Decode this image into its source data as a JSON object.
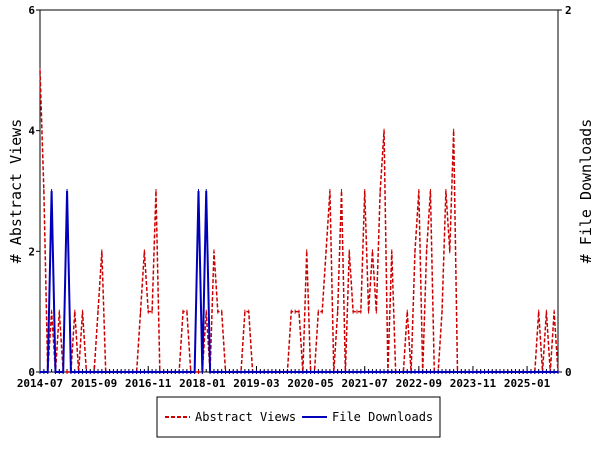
{
  "chart_data": {
    "type": "line",
    "x_axis": {
      "start": "2014-07",
      "end": "2025-09",
      "tick_labels": [
        "2014-07",
        "2015-09",
        "2016-11",
        "2018-01",
        "2019-03",
        "2020-05",
        "2021-07",
        "2022-09",
        "2023-11",
        "2025-01"
      ]
    },
    "y_left": {
      "label": "# Abstract Views",
      "ylim": [
        0,
        6
      ],
      "ticks": [
        "0",
        "2",
        "4",
        "6"
      ]
    },
    "y_right": {
      "label": "# File Downloads",
      "ylim": [
        0,
        2
      ],
      "ticks": [
        "0",
        "2"
      ]
    },
    "grid": false,
    "legend_position": "bottom-center",
    "series": [
      {
        "name": "Abstract Views",
        "color": "#cc0000",
        "axis": "left",
        "style": "dashed",
        "points": [
          [
            "2014-07",
            5
          ],
          [
            "2014-08",
            3
          ],
          [
            "2014-09",
            0
          ],
          [
            "2014-10",
            1
          ],
          [
            "2014-11",
            0
          ],
          [
            "2014-12",
            1
          ],
          [
            "2015-01",
            0
          ],
          [
            "2015-02",
            0
          ],
          [
            "2015-03",
            0
          ],
          [
            "2015-04",
            1
          ],
          [
            "2015-05",
            0
          ],
          [
            "2015-06",
            1
          ],
          [
            "2015-07",
            0
          ],
          [
            "2015-08",
            0
          ],
          [
            "2015-09",
            0
          ],
          [
            "2015-10",
            1
          ],
          [
            "2015-11",
            2
          ],
          [
            "2015-12",
            0
          ],
          [
            "2016-01",
            0
          ],
          [
            "2016-02",
            0
          ],
          [
            "2016-03",
            0
          ],
          [
            "2016-04",
            0
          ],
          [
            "2016-05",
            0
          ],
          [
            "2016-06",
            0
          ],
          [
            "2016-07",
            0
          ],
          [
            "2016-08",
            0
          ],
          [
            "2016-09",
            1
          ],
          [
            "2016-10",
            2
          ],
          [
            "2016-11",
            1
          ],
          [
            "2016-12",
            1
          ],
          [
            "2017-01",
            3
          ],
          [
            "2017-02",
            0
          ],
          [
            "2017-03",
            0
          ],
          [
            "2017-04",
            0
          ],
          [
            "2017-05",
            0
          ],
          [
            "2017-06",
            0
          ],
          [
            "2017-07",
            0
          ],
          [
            "2017-08",
            1
          ],
          [
            "2017-09",
            1
          ],
          [
            "2017-10",
            0
          ],
          [
            "2017-11",
            0
          ],
          [
            "2017-12",
            0
          ],
          [
            "2018-01",
            0
          ],
          [
            "2018-02",
            1
          ],
          [
            "2018-03",
            0
          ],
          [
            "2018-04",
            2
          ],
          [
            "2018-05",
            1
          ],
          [
            "2018-06",
            1
          ],
          [
            "2018-07",
            0
          ],
          [
            "2018-08",
            0
          ],
          [
            "2018-09",
            0
          ],
          [
            "2018-10",
            0
          ],
          [
            "2018-11",
            0
          ],
          [
            "2018-12",
            1
          ],
          [
            "2019-01",
            1
          ],
          [
            "2019-02",
            0
          ],
          [
            "2019-03",
            0
          ],
          [
            "2019-04",
            0
          ],
          [
            "2019-05",
            0
          ],
          [
            "2019-06",
            0
          ],
          [
            "2019-07",
            0
          ],
          [
            "2019-08",
            0
          ],
          [
            "2019-09",
            0
          ],
          [
            "2019-10",
            0
          ],
          [
            "2019-11",
            0
          ],
          [
            "2019-12",
            1
          ],
          [
            "2020-01",
            1
          ],
          [
            "2020-02",
            1
          ],
          [
            "2020-03",
            0
          ],
          [
            "2020-04",
            2
          ],
          [
            "2020-05",
            0
          ],
          [
            "2020-06",
            0
          ],
          [
            "2020-07",
            1
          ],
          [
            "2020-08",
            1
          ],
          [
            "2020-09",
            2
          ],
          [
            "2020-10",
            3
          ],
          [
            "2020-11",
            0
          ],
          [
            "2020-12",
            1
          ],
          [
            "2021-01",
            3
          ],
          [
            "2021-02",
            0
          ],
          [
            "2021-03",
            2
          ],
          [
            "2021-04",
            1
          ],
          [
            "2021-05",
            1
          ],
          [
            "2021-06",
            1
          ],
          [
            "2021-07",
            3
          ],
          [
            "2021-08",
            1
          ],
          [
            "2021-09",
            2
          ],
          [
            "2021-10",
            1
          ],
          [
            "2021-11",
            3
          ],
          [
            "2021-12",
            4
          ],
          [
            "2022-01",
            0
          ],
          [
            "2022-02",
            2
          ],
          [
            "2022-03",
            0
          ],
          [
            "2022-04",
            0
          ],
          [
            "2022-05",
            0
          ],
          [
            "2022-06",
            1
          ],
          [
            "2022-07",
            0
          ],
          [
            "2022-08",
            2
          ],
          [
            "2022-09",
            3
          ],
          [
            "2022-10",
            0
          ],
          [
            "2022-11",
            2
          ],
          [
            "2022-12",
            3
          ],
          [
            "2023-01",
            0
          ],
          [
            "2023-02",
            0
          ],
          [
            "2023-03",
            1
          ],
          [
            "2023-04",
            3
          ],
          [
            "2023-05",
            2
          ],
          [
            "2023-06",
            4
          ],
          [
            "2023-07",
            0
          ],
          [
            "2023-08",
            0
          ],
          [
            "2023-09",
            0
          ],
          [
            "2023-10",
            0
          ],
          [
            "2023-11",
            0
          ],
          [
            "2023-12",
            0
          ],
          [
            "2024-01",
            0
          ],
          [
            "2024-02",
            0
          ],
          [
            "2024-03",
            0
          ],
          [
            "2024-04",
            0
          ],
          [
            "2024-05",
            0
          ],
          [
            "2024-06",
            0
          ],
          [
            "2024-07",
            0
          ],
          [
            "2024-08",
            0
          ],
          [
            "2024-09",
            0
          ],
          [
            "2024-10",
            0
          ],
          [
            "2024-11",
            0
          ],
          [
            "2024-12",
            0
          ],
          [
            "2025-01",
            0
          ],
          [
            "2025-02",
            0
          ],
          [
            "2025-03",
            0
          ],
          [
            "2025-04",
            1
          ],
          [
            "2025-05",
            0
          ],
          [
            "2025-06",
            1
          ],
          [
            "2025-07",
            0
          ],
          [
            "2025-08",
            1
          ],
          [
            "2025-09",
            0
          ]
        ]
      },
      {
        "name": "File Downloads",
        "color": "#0000bb",
        "axis": "right",
        "style": "solid",
        "points": [
          [
            "2014-07",
            0
          ],
          [
            "2014-08",
            0
          ],
          [
            "2014-09",
            0
          ],
          [
            "2014-10",
            1
          ],
          [
            "2014-11",
            0
          ],
          [
            "2014-12",
            0
          ],
          [
            "2015-01",
            0
          ],
          [
            "2015-02",
            1
          ],
          [
            "2015-03",
            0
          ],
          [
            "2015-04",
            0
          ],
          [
            "2015-05",
            0
          ],
          [
            "2015-06",
            0
          ],
          [
            "2015-07",
            0
          ],
          [
            "2015-08",
            0
          ],
          [
            "2015-09",
            0
          ],
          [
            "2015-10",
            0
          ],
          [
            "2015-11",
            0
          ],
          [
            "2015-12",
            0
          ],
          [
            "2016-01",
            0
          ],
          [
            "2016-02",
            0
          ],
          [
            "2016-03",
            0
          ],
          [
            "2016-04",
            0
          ],
          [
            "2016-05",
            0
          ],
          [
            "2016-06",
            0
          ],
          [
            "2016-07",
            0
          ],
          [
            "2016-08",
            0
          ],
          [
            "2016-09",
            0
          ],
          [
            "2016-10",
            0
          ],
          [
            "2016-11",
            0
          ],
          [
            "2016-12",
            0
          ],
          [
            "2017-01",
            0
          ],
          [
            "2017-02",
            0
          ],
          [
            "2017-03",
            0
          ],
          [
            "2017-04",
            0
          ],
          [
            "2017-05",
            0
          ],
          [
            "2017-06",
            0
          ],
          [
            "2017-07",
            0
          ],
          [
            "2017-08",
            0
          ],
          [
            "2017-09",
            0
          ],
          [
            "2017-10",
            0
          ],
          [
            "2017-11",
            0
          ],
          [
            "2017-12",
            1
          ],
          [
            "2018-01",
            0
          ],
          [
            "2018-02",
            1
          ],
          [
            "2018-03",
            0
          ],
          [
            "2018-04",
            0
          ],
          [
            "2018-05",
            0
          ],
          [
            "2018-06",
            0
          ],
          [
            "2018-07",
            0
          ],
          [
            "2018-08",
            0
          ],
          [
            "2018-09",
            0
          ],
          [
            "2018-10",
            0
          ],
          [
            "2018-11",
            0
          ],
          [
            "2018-12",
            0
          ],
          [
            "2019-01",
            0
          ],
          [
            "2019-02",
            0
          ],
          [
            "2019-03",
            0
          ],
          [
            "2019-04",
            0
          ],
          [
            "2019-05",
            0
          ],
          [
            "2019-06",
            0
          ],
          [
            "2019-07",
            0
          ],
          [
            "2019-08",
            0
          ],
          [
            "2019-09",
            0
          ],
          [
            "2019-10",
            0
          ],
          [
            "2019-11",
            0
          ],
          [
            "2019-12",
            0
          ],
          [
            "2020-01",
            0
          ],
          [
            "2020-02",
            0
          ],
          [
            "2020-03",
            0
          ],
          [
            "2020-04",
            0
          ],
          [
            "2020-05",
            0
          ],
          [
            "2020-06",
            0
          ],
          [
            "2020-07",
            0
          ],
          [
            "2020-08",
            0
          ],
          [
            "2020-09",
            0
          ],
          [
            "2020-10",
            0
          ],
          [
            "2020-11",
            0
          ],
          [
            "2020-12",
            0
          ],
          [
            "2021-01",
            0
          ],
          [
            "2021-02",
            0
          ],
          [
            "2021-03",
            0
          ],
          [
            "2021-04",
            0
          ],
          [
            "2021-05",
            0
          ],
          [
            "2021-06",
            0
          ],
          [
            "2021-07",
            0
          ],
          [
            "2021-08",
            0
          ],
          [
            "2021-09",
            0
          ],
          [
            "2021-10",
            0
          ],
          [
            "2021-11",
            0
          ],
          [
            "2021-12",
            0
          ],
          [
            "2022-01",
            0
          ],
          [
            "2022-02",
            0
          ],
          [
            "2022-03",
            0
          ],
          [
            "2022-04",
            0
          ],
          [
            "2022-05",
            0
          ],
          [
            "2022-06",
            0
          ],
          [
            "2022-07",
            0
          ],
          [
            "2022-08",
            0
          ],
          [
            "2022-09",
            0
          ],
          [
            "2022-10",
            0
          ],
          [
            "2022-11",
            0
          ],
          [
            "2022-12",
            0
          ],
          [
            "2023-01",
            0
          ],
          [
            "2023-02",
            0
          ],
          [
            "2023-03",
            0
          ],
          [
            "2023-04",
            0
          ],
          [
            "2023-05",
            0
          ],
          [
            "2023-06",
            0
          ],
          [
            "2023-07",
            0
          ],
          [
            "2023-08",
            0
          ],
          [
            "2023-09",
            0
          ],
          [
            "2023-10",
            0
          ],
          [
            "2023-11",
            0
          ],
          [
            "2023-12",
            0
          ],
          [
            "2024-01",
            0
          ],
          [
            "2024-02",
            0
          ],
          [
            "2024-03",
            0
          ],
          [
            "2024-04",
            0
          ],
          [
            "2024-05",
            0
          ],
          [
            "2024-06",
            0
          ],
          [
            "2024-07",
            0
          ],
          [
            "2024-08",
            0
          ],
          [
            "2024-09",
            0
          ],
          [
            "2024-10",
            0
          ],
          [
            "2024-11",
            0
          ],
          [
            "2024-12",
            0
          ],
          [
            "2025-01",
            0
          ],
          [
            "2025-02",
            0
          ],
          [
            "2025-03",
            0
          ],
          [
            "2025-04",
            0
          ],
          [
            "2025-05",
            0
          ],
          [
            "2025-06",
            0
          ],
          [
            "2025-07",
            0
          ],
          [
            "2025-08",
            0
          ],
          [
            "2025-09",
            0
          ]
        ]
      }
    ]
  }
}
